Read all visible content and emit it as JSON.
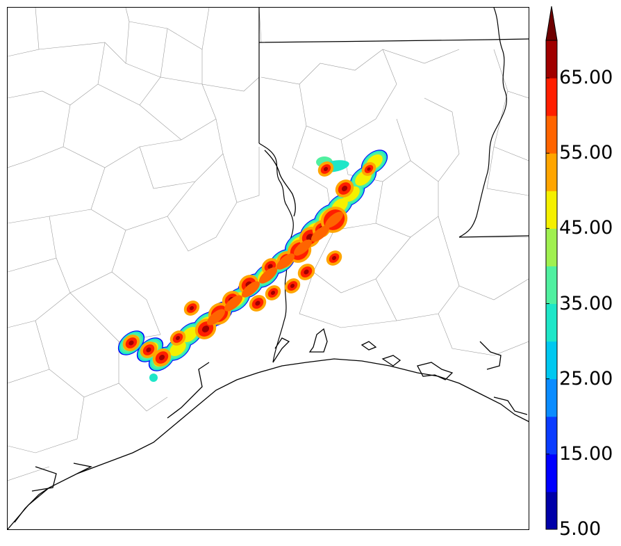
{
  "colorbar": {
    "levels": [
      5,
      10,
      15,
      20,
      25,
      30,
      35,
      40,
      45,
      50,
      55,
      60,
      65,
      70
    ],
    "colors": [
      "#0000a8",
      "#0000ff",
      "#0a3cff",
      "#0a8cff",
      "#00c8f0",
      "#1ee6c8",
      "#50f0a0",
      "#a0f050",
      "#f5f000",
      "#ffa500",
      "#ff6400",
      "#ff1e00",
      "#a00000"
    ],
    "extend_color": "#6e0000",
    "tick_labels": [
      "65.00",
      "55.00",
      "45.00",
      "35.00",
      "25.00",
      "15.00",
      "5.00"
    ],
    "extend": "max"
  },
  "map": {
    "region": "Upper Texas / Louisiana Gulf Coast",
    "county_lines_color": "#9a9a9a",
    "state_lines_color": "#000000",
    "coastline_color": "#000000"
  }
}
